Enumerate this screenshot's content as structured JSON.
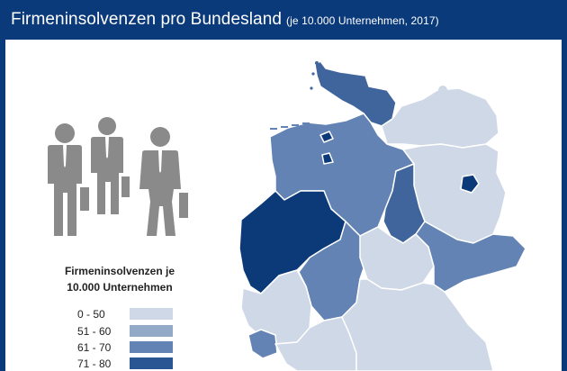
{
  "header": {
    "title": "Firmeninsolvenzen pro Bundesland",
    "subtitle": "(je 10.000 Unternehmen, 2017)"
  },
  "legend": {
    "title_line1": "Firmeninsolvenzen je",
    "title_line2": "10.000 Unternehmen",
    "items": [
      {
        "label": "0 - 50",
        "color": "#cfd8e6"
      },
      {
        "label": "51 - 60",
        "color": "#93a9c8"
      },
      {
        "label": "61 - 70",
        "color": "#6283b3"
      },
      {
        "label": "71 - 80",
        "color": "#2a5794"
      }
    ],
    "next_color": "#cfd8e6"
  },
  "colors": {
    "header_bg": "#0b3a7a",
    "people": "#8a8a8a",
    "darkest": "#0c3a78"
  },
  "icons": {
    "people": "business-people-icon"
  }
}
